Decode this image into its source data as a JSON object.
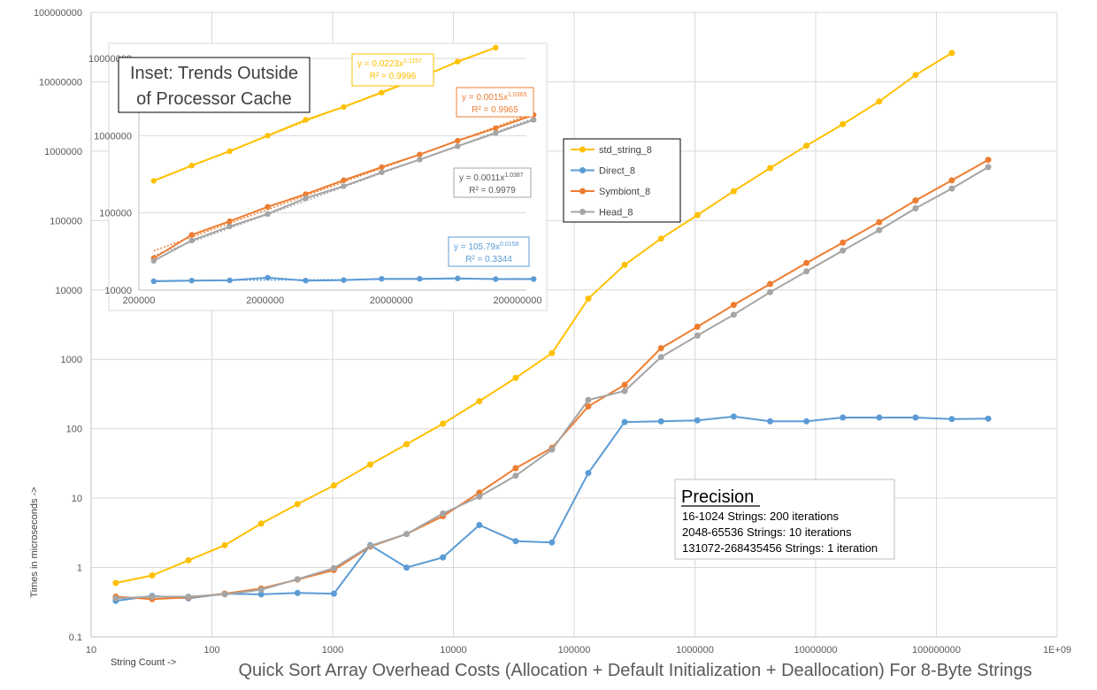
{
  "chart_data": [
    {
      "id": "main",
      "type": "line",
      "title": "Quick Sort Array Overhead Costs (Allocation + Default Initialization + Deallocation) For 8-Byte Strings",
      "xlabel": "String Count ->",
      "ylabel": "Times in microseconds ->",
      "x_scale": "log",
      "y_scale": "log",
      "xlim": [
        10,
        1000000000
      ],
      "ylim": [
        0.1,
        100000000
      ],
      "x_ticks": [
        "10",
        "100",
        "1000",
        "10000",
        "100000",
        "1000000",
        "10000000",
        "100000000",
        "1E+09"
      ],
      "y_ticks": [
        "0.1",
        "1",
        "10",
        "100",
        "1000",
        "10000",
        "100000",
        "1000000",
        "10000000",
        "100000000"
      ],
      "grid": true,
      "legend_position": "right-upper",
      "x": [
        16,
        32,
        64,
        128,
        256,
        512,
        1024,
        2048,
        4096,
        8192,
        16384,
        32768,
        65536,
        131072,
        262144,
        524288,
        1048576,
        2097152,
        4194304,
        8388608,
        16777216,
        33554432,
        67108864,
        134217728,
        268435456
      ],
      "series": [
        {
          "name": "std_string_8",
          "color": "#FFC000",
          "values": [
            0.6,
            0.77,
            1.27,
            2.1,
            4.3,
            8.2,
            15.2,
            30.5,
            60,
            118,
            250,
            540,
            1230,
            7500,
            23000,
            55000,
            120000,
            265000,
            570000,
            1200000,
            2450000,
            5200000,
            12500000,
            26000000,
            null
          ]
        },
        {
          "name": "Direct_8",
          "color": "#5B9BD5",
          "values": [
            0.33,
            0.39,
            0.36,
            0.42,
            0.41,
            0.43,
            0.42,
            2.1,
            1.0,
            1.4,
            4.1,
            2.4,
            2.3,
            23,
            125,
            128,
            132,
            150,
            128,
            128,
            145,
            145,
            145,
            138,
            140
          ]
        },
        {
          "name": "Symbiont_8",
          "color": "#ED7D31",
          "values": [
            0.38,
            0.35,
            0.37,
            0.42,
            0.5,
            0.67,
            0.92,
            2.0,
            3.05,
            5.5,
            12.0,
            27.0,
            53,
            210,
            430,
            1450,
            2950,
            6100,
            12200,
            24500,
            48000,
            95000,
            195000,
            380000,
            750000
          ]
        },
        {
          "name": "Head_8",
          "color": "#A5A5A5",
          "values": [
            0.36,
            0.38,
            0.38,
            0.41,
            0.48,
            0.68,
            0.98,
            2.05,
            3.05,
            6.0,
            10.5,
            21,
            50,
            260,
            350,
            1080,
            2200,
            4400,
            9300,
            18500,
            37000,
            73000,
            150000,
            290000,
            590000
          ]
        }
      ],
      "precision_box": {
        "title": "Precision",
        "lines": [
          "16-1024 Strings: 200 iterations",
          "2048-65536  Strings: 10 iterations",
          "131072-268435456  Strings: 1 iteration"
        ]
      }
    },
    {
      "id": "inset",
      "type": "line",
      "title": "Inset: Trends Outside of Processor Cache",
      "title_lines": [
        "Inset: Trends Outside",
        "of Processor Cache"
      ],
      "x_scale": "log",
      "y_scale": "log",
      "x_ticks": [
        "200000",
        "2000000",
        "20000000",
        "200000000"
      ],
      "y_ticks": [
        "10000",
        "100000",
        "1000000",
        "10000000"
      ],
      "xlim": [
        200000,
        200000000
      ],
      "ylim": [
        10000,
        10000000
      ],
      "x": [
        262144,
        524288,
        1048576,
        2097152,
        4194304,
        8388608,
        16777216,
        33554432,
        67108864,
        134217728,
        268435456
      ],
      "series": [
        {
          "name": "std_string_8",
          "color": "#FFC000",
          "values": [
            260000,
            410000,
            630000,
            1000000,
            1600000,
            2350000,
            3600000,
            5600000,
            9100000,
            13800000,
            null
          ],
          "trendline": {
            "equation": "y = 0.0223x",
            "exponent": "1.1157",
            "r2": "R² = 0.9996"
          }
        },
        {
          "name": "Direct_8",
          "color": "#5B9BD5",
          "values": [
            13000,
            13300,
            13400,
            14500,
            13300,
            13500,
            14000,
            14000,
            14200,
            13900,
            13900
          ],
          "trendline": {
            "equation": "y = 105.79x",
            "exponent": "0.0158",
            "r2": "R² = 0.3344"
          }
        },
        {
          "name": "Symbiont_8",
          "color": "#ED7D31",
          "values": [
            26000,
            52000,
            78000,
            120000,
            175000,
            265000,
            390000,
            570000,
            860000,
            1250000,
            1850000
          ],
          "trendline": {
            "equation": "y = 0.0015x",
            "exponent": "1.0365",
            "r2": "R² = 0.9965"
          }
        },
        {
          "name": "Head_8",
          "color": "#A5A5A5",
          "values": [
            24000,
            44000,
            67000,
            97000,
            155000,
            222000,
            335000,
            490000,
            730000,
            1080000,
            1600000
          ],
          "trendline": {
            "equation": "y = 0.0011x",
            "exponent": "1.0387",
            "r2": "R² = 0.9979"
          }
        }
      ]
    }
  ]
}
